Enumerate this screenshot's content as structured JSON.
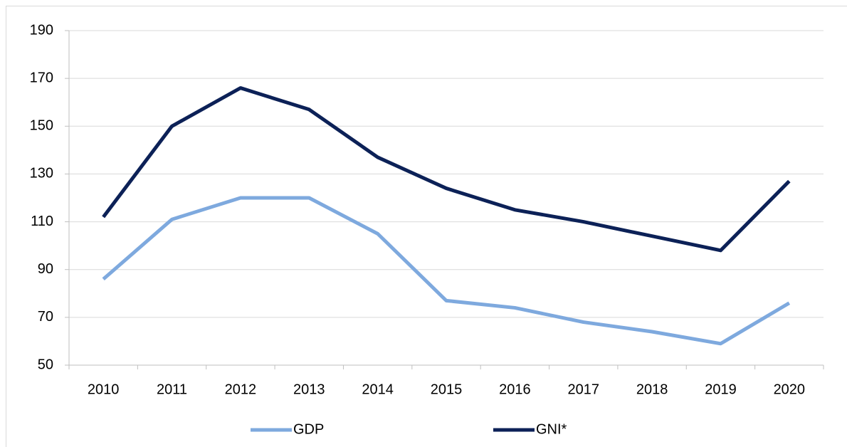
{
  "chart_data": {
    "type": "line",
    "categories": [
      "2010",
      "2011",
      "2012",
      "2013",
      "2014",
      "2015",
      "2016",
      "2017",
      "2018",
      "2019",
      "2020"
    ],
    "series": [
      {
        "name": "GDP",
        "color": "#7ea9de",
        "values": [
          86,
          111,
          120,
          120,
          105,
          77,
          74,
          68,
          64,
          59,
          76
        ]
      },
      {
        "name": "GNI*",
        "color": "#0c2157",
        "values": [
          112,
          150,
          166,
          157,
          137,
          124,
          115,
          110,
          104,
          98,
          127
        ]
      }
    ],
    "ylim": [
      50,
      190
    ],
    "yticks": [
      50,
      70,
      90,
      110,
      130,
      150,
      170,
      190
    ],
    "grid": true,
    "legend": "bottom"
  }
}
